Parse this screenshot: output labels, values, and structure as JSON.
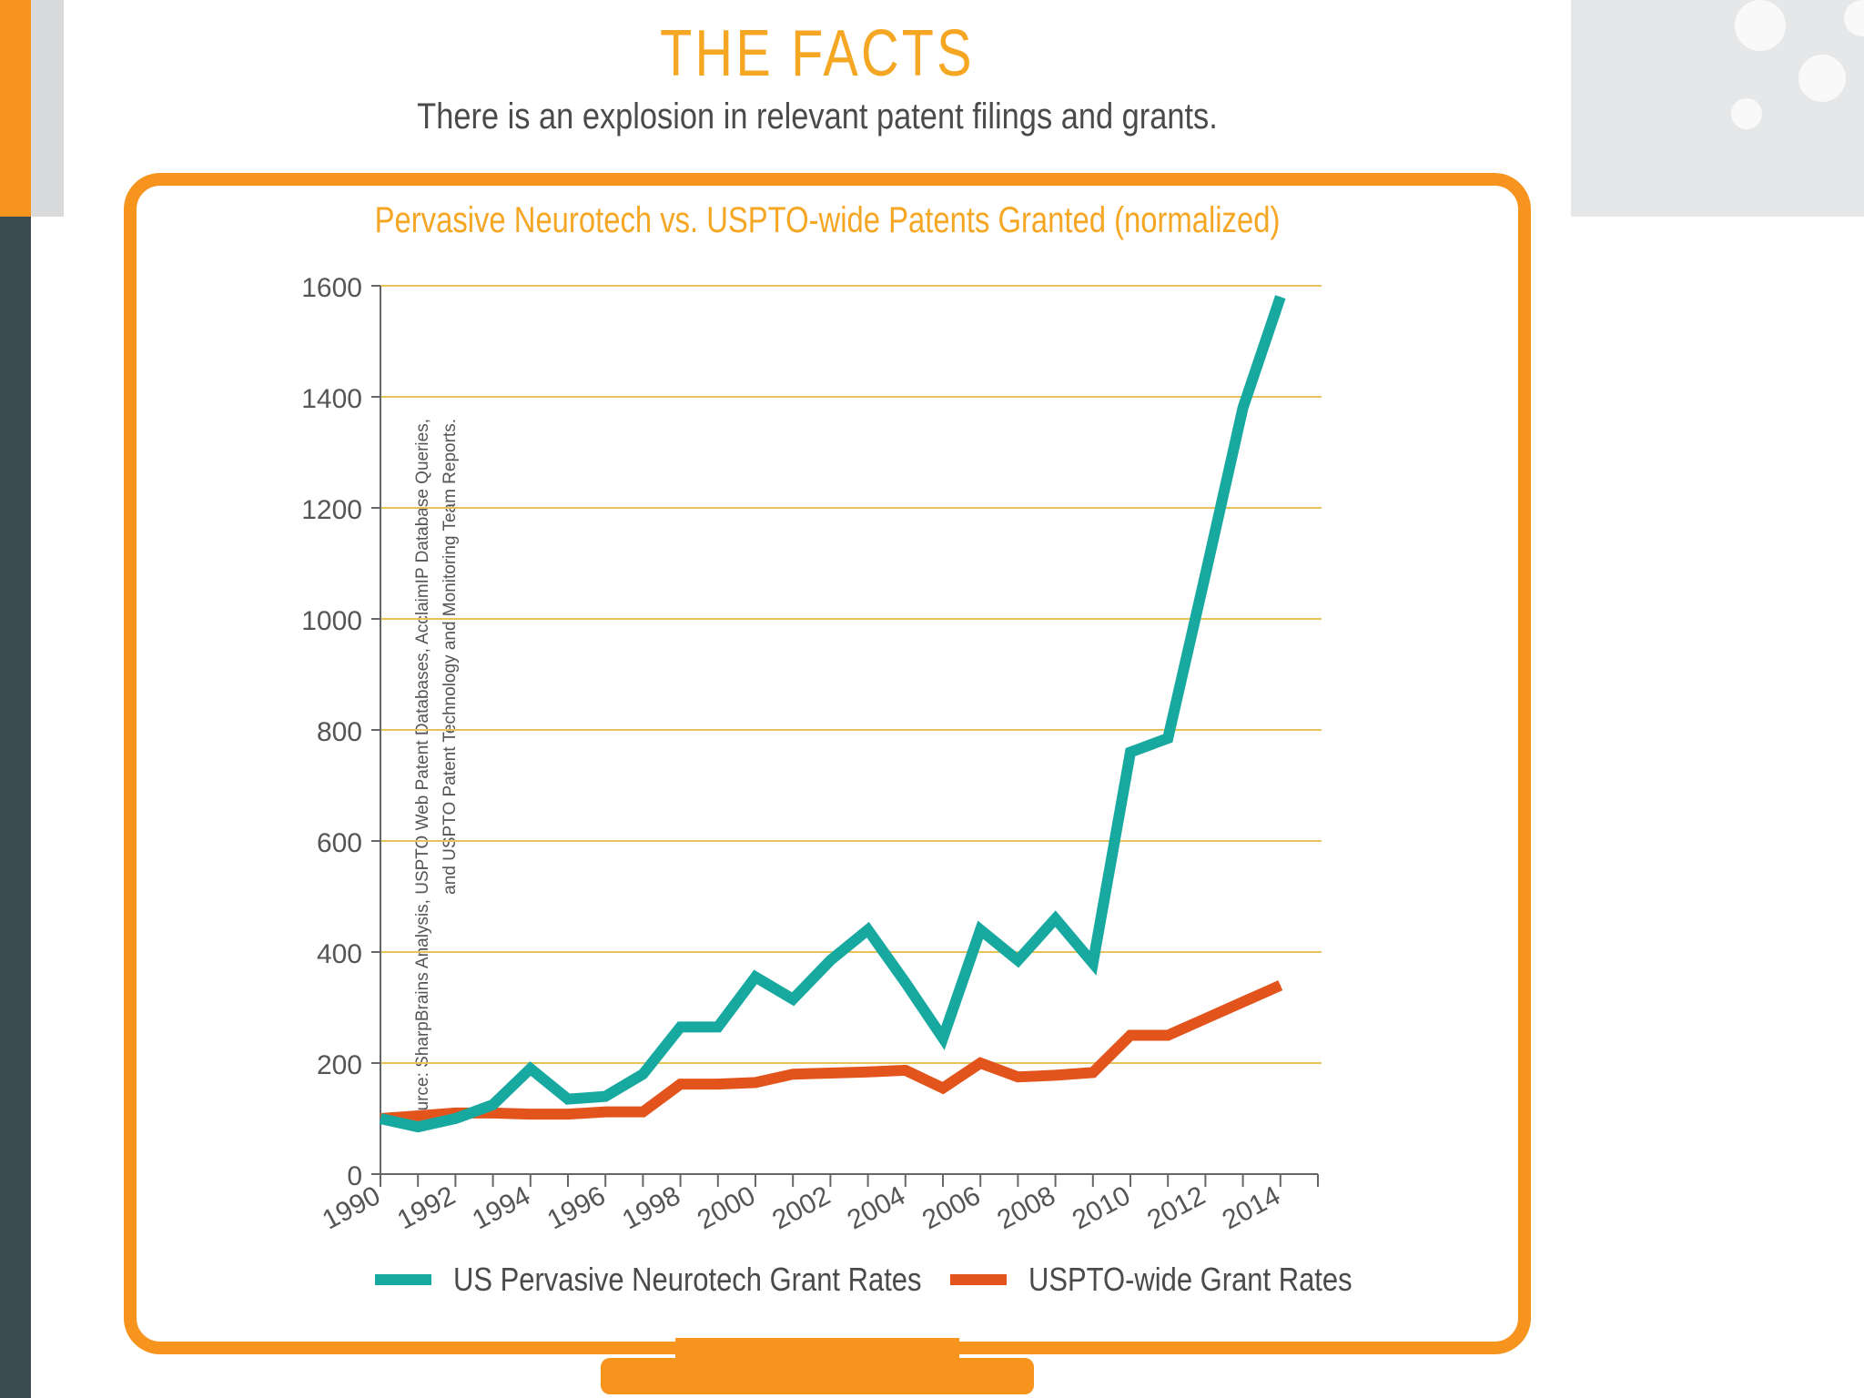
{
  "page": {
    "title": "THE  FACTS",
    "subtitle": "There is an explosion in relevant patent filings and grants."
  },
  "source_note": {
    "line1": "Source: SharpBrains Analysis, USPTO Web Patent Databases, AcclaimIP Database Queries,",
    "line2": "and USPTO Patent Technology and Monitoring Team Reports."
  },
  "colors": {
    "accent": "#f7941d",
    "title": "#f5a623",
    "grid": "#e8c35a",
    "neurotech": "#17a9a0",
    "uspto": "#e2541c"
  },
  "chart_data": {
    "type": "line",
    "title": "Pervasive Neurotech vs. USPTO-wide Patents Granted (normalized)",
    "xlabel": "",
    "ylabel": "",
    "ylim": [
      0,
      1600
    ],
    "yticks": [
      "0",
      "200",
      "400",
      "600",
      "800",
      "1000",
      "1200",
      "1400",
      "1600"
    ],
    "xlim": [
      1990,
      2015
    ],
    "xticks": [
      "1990",
      "1992",
      "1994",
      "1996",
      "1998",
      "2000",
      "2002",
      "2004",
      "2006",
      "2008",
      "2010",
      "2012",
      "2014"
    ],
    "grid": true,
    "legend_position": "bottom",
    "x": [
      1990,
      1991,
      1992,
      1993,
      1994,
      1995,
      1996,
      1997,
      1998,
      1999,
      2000,
      2001,
      2002,
      2003,
      2004,
      2005,
      2006,
      2007,
      2008,
      2009,
      2010,
      2011,
      2012,
      2013,
      2014
    ],
    "series": [
      {
        "name": "US Pervasive Neurotech Grant Rates",
        "color": "#17a9a0",
        "values": [
          100,
          85,
          100,
          125,
          190,
          135,
          140,
          180,
          265,
          265,
          355,
          315,
          385,
          440,
          345,
          245,
          440,
          385,
          460,
          380,
          760,
          785,
          1080,
          1380,
          1580
        ]
      },
      {
        "name": "USPTO-wide Grant Rates",
        "color": "#e2541c",
        "values": [
          100,
          105,
          110,
          110,
          108,
          108,
          112,
          112,
          162,
          162,
          165,
          180,
          182,
          184,
          187,
          155,
          200,
          175,
          178,
          183,
          250,
          250,
          280,
          310,
          340
        ]
      }
    ]
  }
}
